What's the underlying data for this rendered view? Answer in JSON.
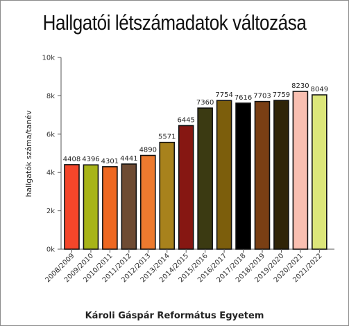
{
  "chart_data": {
    "type": "bar",
    "title": "Hallgatói létszámadatok változása",
    "xlabel": "Károli Gáspár Református Egyetem",
    "ylabel": "hallgatók száma/tanév",
    "ylim": [
      0,
      10000
    ],
    "yticks": [
      {
        "value": 0,
        "label": "0k"
      },
      {
        "value": 2000,
        "label": "2k"
      },
      {
        "value": 4000,
        "label": "4k"
      },
      {
        "value": 6000,
        "label": "6k"
      },
      {
        "value": 8000,
        "label": "8k"
      },
      {
        "value": 10000,
        "label": "10k"
      }
    ],
    "grid": false,
    "categories": [
      "2008/2009",
      "2009/2010",
      "2010/2011",
      "2011/2012",
      "2012/2013",
      "2013/2014",
      "2014/2015",
      "2015/2016",
      "2016/2017",
      "2017/2018",
      "2018/2019",
      "2019/2020",
      "2020/2021",
      "2021/2022"
    ],
    "values": [
      4408,
      4396,
      4301,
      4441,
      4890,
      5571,
      6445,
      7360,
      7754,
      7616,
      7703,
      7759,
      8230,
      8049
    ],
    "colors": [
      "#f4462a",
      "#a8b418",
      "#ee6720",
      "#6e4b33",
      "#ec7a2f",
      "#a8821c",
      "#861712",
      "#3b3a12",
      "#7c5e0c",
      "#000000",
      "#7a3f14",
      "#2f2408",
      "#f9bfb1",
      "#dce67a"
    ]
  }
}
